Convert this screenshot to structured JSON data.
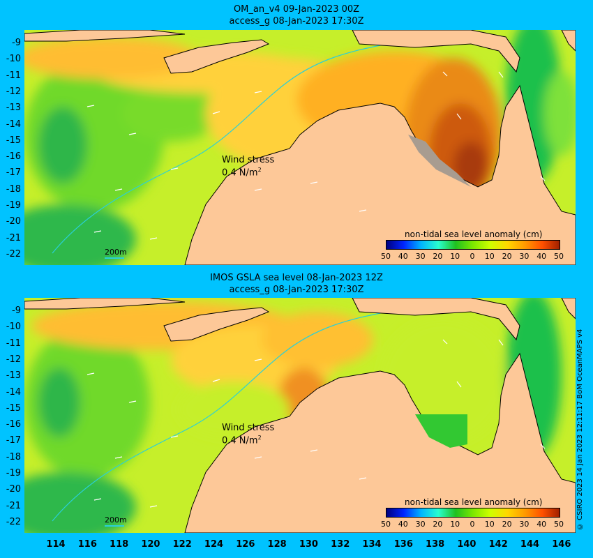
{
  "top_panel": {
    "title_line1": "OM_an_v4  09-Jan-2023 00Z",
    "title_line2": "access_g 08-Jan-2023 17:30Z",
    "wind_label": "Wind stress",
    "wind_value": "0.4 N/m",
    "wind_exp": "2",
    "colorbar_title": "non-tidal sea level anomaly (cm)",
    "scale_label": "200m"
  },
  "bottom_panel": {
    "title_line1": "IMOS GSLA sea level  08-Jan-2023 12Z",
    "title_line2": "access_g 08-Jan-2023 17:30Z",
    "wind_label": "Wind stress",
    "wind_value": "0.4 N/m",
    "wind_exp": "2",
    "colorbar_title": "non-tidal sea level anomaly (cm)",
    "scale_label": "200m"
  },
  "lat_labels": [
    "-9",
    "-10",
    "-11",
    "-12",
    "-13",
    "-14",
    "-15",
    "-16",
    "-17",
    "-18",
    "-19",
    "-20",
    "-21",
    "-22"
  ],
  "lon_labels": [
    "114",
    "116",
    "118",
    "120",
    "122",
    "124",
    "126",
    "128",
    "130",
    "132",
    "134",
    "136",
    "138",
    "140",
    "142",
    "144",
    "146"
  ],
  "colorbar_ticks": [
    "50",
    "40",
    "30",
    "20",
    "10",
    "0",
    "10",
    "20",
    "30",
    "40",
    "50"
  ],
  "colorbar_colors": [
    "#00007f",
    "#0025ff",
    "#00b4ff",
    "#29ffce",
    "#20c020",
    "#7ce800",
    "#cfff00",
    "#ffd700",
    "#ff9a00",
    "#ff5000",
    "#a02000"
  ],
  "credit": "© CSIRO 2023   14 Jan 2023 12:11:17 BoM OceanMAPS v4",
  "colors": {
    "background": "#00c3ff",
    "land": "#fdc898",
    "coast_gray": "#a89c90",
    "isobath": "#2ad0d8"
  }
}
